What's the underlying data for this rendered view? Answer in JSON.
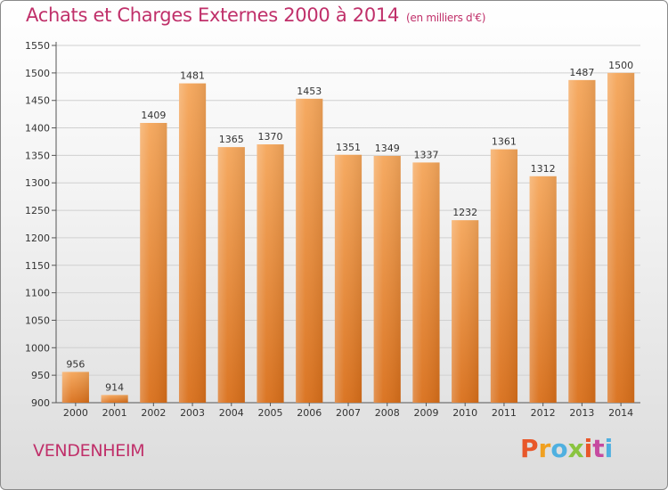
{
  "header": {
    "title": "Achats et Charges Externes 2000 à 2014",
    "subtitle": "(en milliers d'€)"
  },
  "footer": {
    "commune": "VENDENHEIM",
    "logo_text": "Proxiti"
  },
  "colors": {
    "title": "#c0306a",
    "bar_top": "#f5a65a",
    "bar_bottom": "#d96f1a",
    "grid": "#d0d0d0",
    "logo": [
      "#e8572a",
      "#f0a020",
      "#4fb0e0",
      "#8ac43f",
      "#e8572a",
      "#c64aa0",
      "#4fb0e0"
    ]
  },
  "chart_data": {
    "type": "bar",
    "title": "Achats et Charges Externes 2000 à 2014",
    "subtitle": "(en milliers d'€)",
    "categories": [
      "2000",
      "2001",
      "2002",
      "2003",
      "2004",
      "2005",
      "2006",
      "2007",
      "2008",
      "2009",
      "2010",
      "2011",
      "2012",
      "2013",
      "2014"
    ],
    "values": [
      956,
      914,
      1409,
      1481,
      1365,
      1370,
      1453,
      1351,
      1349,
      1337,
      1232,
      1361,
      1312,
      1487,
      1500
    ],
    "yticks": [
      900,
      950,
      1000,
      1050,
      1100,
      1150,
      1200,
      1250,
      1300,
      1350,
      1400,
      1450,
      1500,
      1550
    ],
    "ylim": [
      900,
      1550
    ],
    "grid": true
  }
}
